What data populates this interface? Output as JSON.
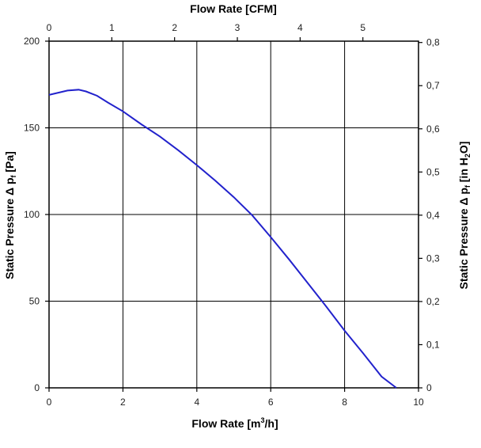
{
  "chart_data": {
    "type": "line",
    "title": "",
    "x_bottom": {
      "label_main": "Flow Rate [m",
      "label_sup": "3",
      "label_end": "/h]",
      "range": [
        0,
        10
      ],
      "ticks": [
        "0",
        "2",
        "4",
        "6",
        "8",
        "10"
      ]
    },
    "x_top": {
      "label": "Flow Rate [CFM]",
      "range": [
        0,
        5.886
      ],
      "ticks": [
        "0",
        "1",
        "2",
        "3",
        "4",
        "5"
      ]
    },
    "y_left": {
      "label_main": "Static Pressure Δ p",
      "label_sub": "f",
      "label_end": " [Pa]",
      "range": [
        0,
        200
      ],
      "ticks": [
        "0",
        "50",
        "100",
        "150",
        "200"
      ]
    },
    "y_right": {
      "label_main": "Static Pressure Δ p",
      "label_sub": "f",
      "label_mid": " [in H",
      "label_sub2": "2",
      "label_end": "O]",
      "range": [
        0,
        0.8031
      ],
      "ticks": [
        "0",
        "0,1",
        "0,2",
        "0,3",
        "0,4",
        "0,5",
        "0,6",
        "0,7",
        "0,8"
      ]
    },
    "grid": true,
    "line_color": "#2222cc",
    "series": [
      {
        "x": [
          0,
          0.5,
          0.8,
          1.0,
          1.3,
          1.6,
          2.0,
          2.5,
          3.0,
          3.5,
          4.0,
          4.5,
          5.0,
          5.5,
          6.0,
          6.5,
          7.0,
          7.5,
          8.0,
          8.5,
          9.0,
          9.4
        ],
        "y": [
          169,
          171.5,
          172,
          171,
          168.5,
          164.5,
          159.5,
          152,
          145,
          137,
          128.5,
          119.5,
          110,
          99.5,
          87,
          74,
          60.5,
          47,
          33,
          20,
          6.5,
          0
        ]
      }
    ]
  }
}
